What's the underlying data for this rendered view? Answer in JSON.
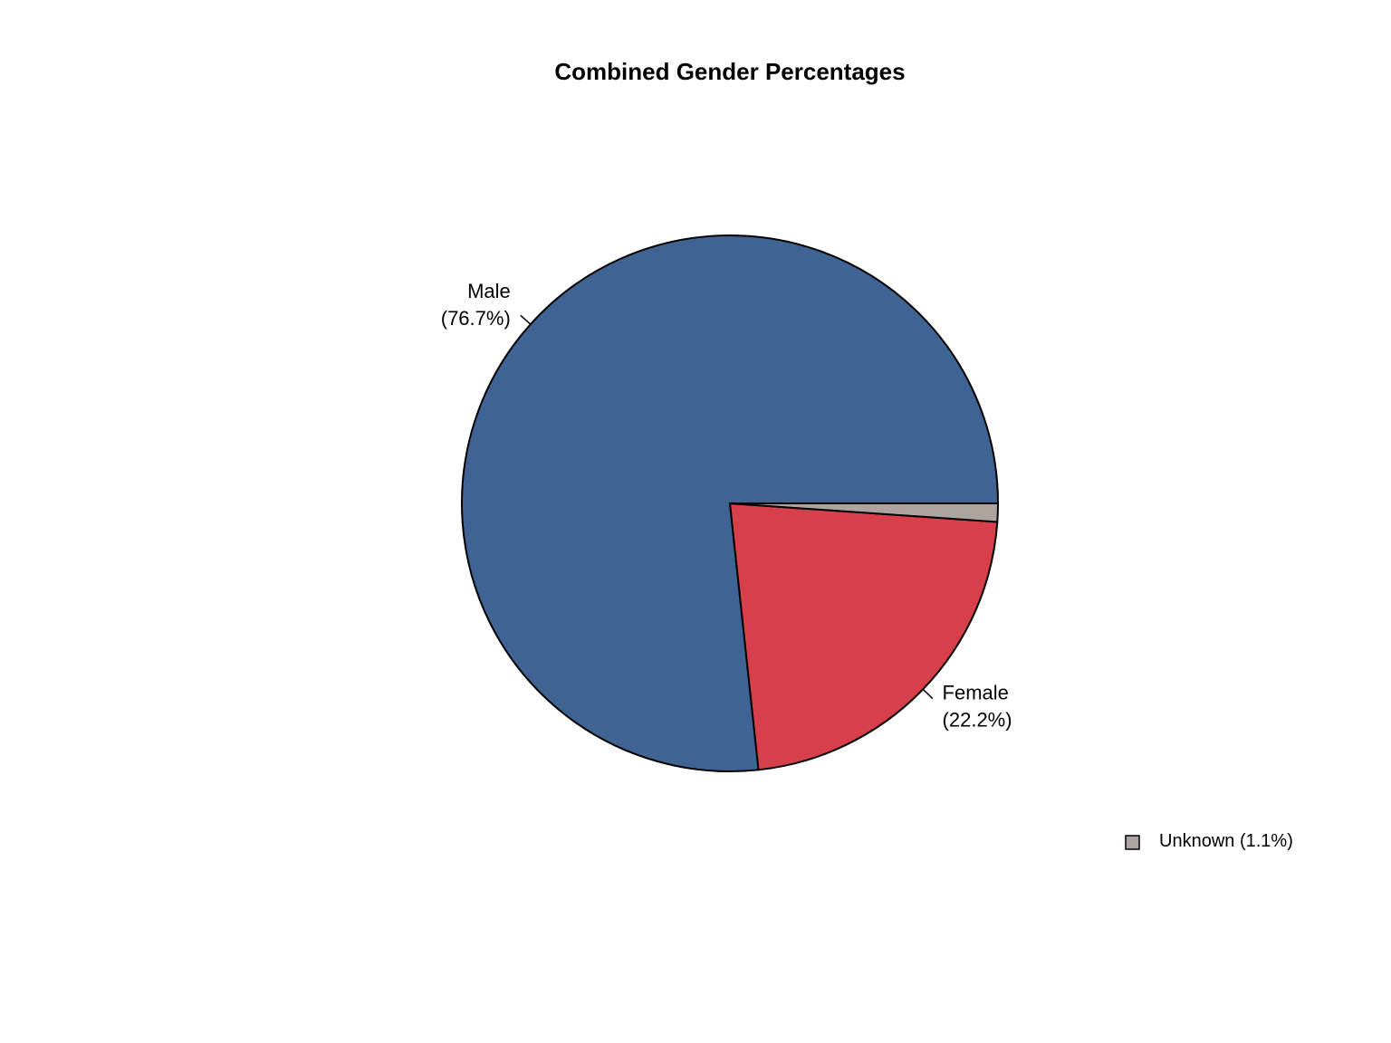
{
  "chart_data": {
    "type": "pie",
    "title": "Combined Gender Percentages",
    "categories": [
      "Male",
      "Female",
      "Unknown"
    ],
    "values": [
      76.7,
      22.2,
      1.1
    ],
    "value_labels": [
      "(76.7%)",
      "(22.2%)",
      "(1.1%)"
    ],
    "colors": [
      "#3f6494",
      "#d7404a",
      "#ada49f"
    ],
    "legend": "bottom-right"
  }
}
